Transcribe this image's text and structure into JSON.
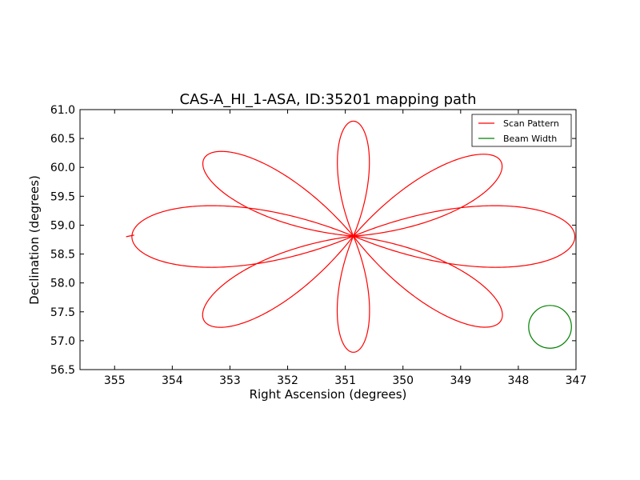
{
  "chart_data": {
    "type": "line",
    "title": "CAS-A_HI_1-ASA, ID:35201 mapping path",
    "xlabel": "Right Ascension (degrees)",
    "ylabel": "Declination (degrees)",
    "xlim": [
      355.6,
      347.0
    ],
    "ylim": [
      56.5,
      61.0
    ],
    "x_ticks": [
      355,
      354,
      353,
      352,
      351,
      350,
      349,
      348,
      347
    ],
    "y_ticks": [
      56.5,
      57.0,
      57.5,
      58.0,
      58.5,
      59.0,
      59.5,
      60.0,
      60.5,
      61.0
    ],
    "x_tick_labels": [
      "355",
      "354",
      "353",
      "352",
      "351",
      "350",
      "349",
      "348",
      "347"
    ],
    "y_tick_labels": [
      "56.5",
      "57.0",
      "57.5",
      "58.0",
      "58.5",
      "59.0",
      "59.5",
      "60.0",
      "60.5",
      "61.0"
    ],
    "legend_position": "top-right",
    "series": [
      {
        "name": "Scan Pattern",
        "color": "#ff0000",
        "pattern": "rose",
        "center": [
          350.86,
          58.81
        ],
        "petals": 8,
        "petal_tips": [
          [
            350.86,
            60.8
          ],
          [
            348.3,
            60.1
          ],
          [
            347.02,
            58.8
          ],
          [
            348.3,
            57.35
          ],
          [
            350.86,
            56.8
          ],
          [
            353.45,
            57.35
          ],
          [
            354.7,
            58.8
          ],
          [
            353.45,
            60.15
          ]
        ],
        "start": [
          354.8,
          58.8
        ]
      },
      {
        "name": "Beam Width",
        "color": "#008000",
        "pattern": "circle",
        "center": [
          347.45,
          57.24
        ],
        "radius_dec": 0.37
      }
    ]
  }
}
